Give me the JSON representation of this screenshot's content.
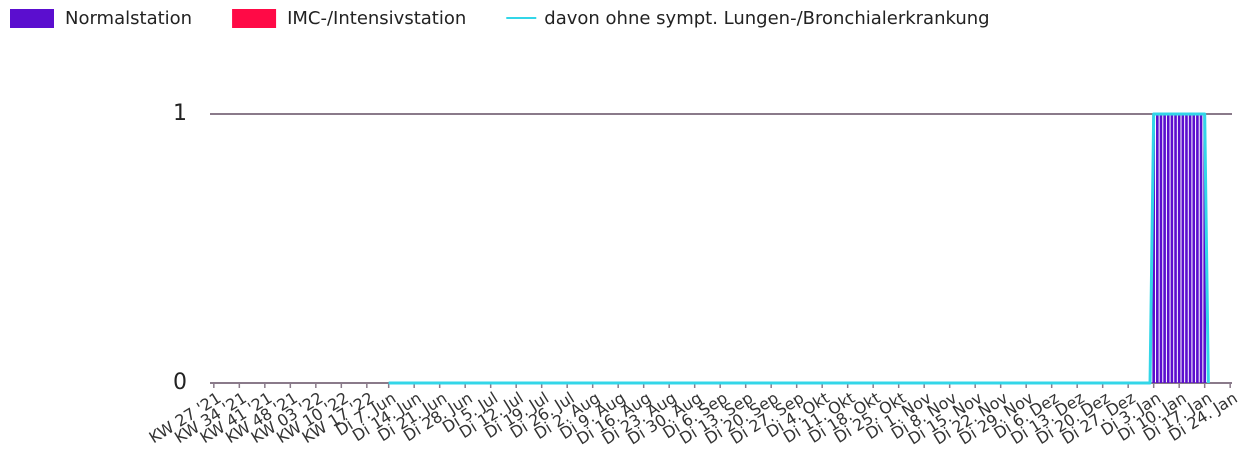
{
  "chart_data": {
    "type": "bar",
    "series": [
      {
        "name": "Normalstation",
        "color": "#5b0ecf",
        "kind": "bar",
        "values": [
          null,
          null,
          null,
          null,
          null,
          null,
          null,
          null,
          null,
          null,
          null,
          null,
          null,
          null,
          null,
          null,
          null,
          null,
          null,
          null,
          null,
          null,
          null,
          null,
          null,
          null,
          null,
          null,
          null,
          null,
          null,
          null,
          null,
          null,
          null,
          null,
          null,
          null,
          null,
          null,
          null,
          null,
          null,
          null,
          null,
          null,
          null,
          null,
          0,
          0,
          0,
          0,
          0,
          0,
          0,
          0,
          0,
          0,
          0,
          0,
          0,
          0,
          0,
          0,
          0,
          0,
          0,
          0,
          0,
          0,
          0,
          0,
          0,
          0,
          0,
          0,
          0,
          0,
          0,
          0,
          0,
          0,
          0,
          0,
          0,
          0,
          0,
          0,
          0,
          0,
          0,
          0,
          0,
          0,
          0,
          0,
          0,
          0,
          0,
          0,
          0,
          0,
          0,
          0,
          0,
          0,
          0,
          0,
          0,
          0,
          0,
          0,
          0,
          0,
          0,
          0,
          0,
          0,
          0,
          0,
          0,
          0,
          0,
          0,
          0,
          0,
          0,
          0,
          0,
          0,
          0,
          0,
          0,
          0,
          0,
          0,
          0,
          0,
          0,
          0,
          0,
          0,
          0,
          0,
          0,
          0,
          0,
          0,
          0,
          0,
          0,
          0,
          0,
          0,
          0,
          0,
          0,
          0,
          0,
          0,
          0,
          0,
          0,
          0,
          0,
          0,
          0,
          0,
          0,
          0,
          0,
          0,
          0,
          0,
          0,
          0,
          0,
          0,
          0,
          0,
          0,
          0,
          0,
          0,
          0,
          0,
          0,
          0,
          0,
          0,
          0,
          0,
          0,
          0,
          0,
          0,
          0,
          0,
          0,
          0,
          0,
          0,
          0,
          0,
          0,
          0,
          0,
          0,
          0,
          0,
          0,
          0,
          0,
          0,
          0,
          0,
          0,
          0,
          0,
          0,
          0,
          0,
          0,
          0,
          0,
          0,
          0,
          0,
          0,
          0,
          0,
          0,
          0,
          0,
          0,
          0,
          0,
          0,
          0,
          0,
          0,
          0,
          0,
          0,
          0,
          0,
          0,
          0,
          0,
          0,
          0,
          0,
          0,
          0,
          0,
          0,
          0,
          0,
          1,
          1,
          1,
          1,
          1,
          1,
          1,
          1,
          1,
          1,
          1,
          1,
          1,
          1,
          1,
          0,
          null,
          null,
          null,
          null,
          null,
          null
        ]
      },
      {
        "name": "IMC-/Intensivstation",
        "color": "#ff0a46",
        "kind": "bar",
        "values": [
          null,
          null,
          null,
          null,
          null,
          null,
          null,
          null,
          null,
          null,
          null,
          null,
          null,
          null,
          null,
          null,
          null,
          null,
          null,
          null,
          null,
          null,
          null,
          null,
          null,
          null,
          null,
          null,
          null,
          null,
          null,
          null,
          null,
          null,
          null,
          null,
          null,
          null,
          null,
          null,
          null,
          null,
          null,
          null,
          null,
          null,
          null,
          null,
          0,
          0,
          0,
          0,
          0,
          0,
          0,
          0,
          0,
          0,
          0,
          0,
          0,
          0,
          0,
          0,
          0,
          0,
          0,
          0,
          0,
          0,
          0,
          0,
          0,
          0,
          0,
          0,
          0,
          0,
          0,
          0,
          0,
          0,
          0,
          0,
          0,
          0,
          0,
          0,
          0,
          0,
          0,
          0,
          0,
          0,
          0,
          0,
          0,
          0,
          0,
          0,
          0,
          0,
          0,
          0,
          0,
          0,
          0,
          0,
          0,
          0,
          0,
          0,
          0,
          0,
          0,
          0,
          0,
          0,
          0,
          0,
          0,
          0,
          0,
          0,
          0,
          0,
          0,
          0,
          0,
          0,
          0,
          0,
          0,
          0,
          0,
          0,
          0,
          0,
          0,
          0,
          0,
          0,
          0,
          0,
          0,
          0,
          0,
          0,
          0,
          0,
          0,
          0,
          0,
          0,
          0,
          0,
          0,
          0,
          0,
          0,
          0,
          0,
          0,
          0,
          0,
          0,
          0,
          0,
          0,
          0,
          0,
          0,
          0,
          0,
          0,
          0,
          0,
          0,
          0,
          0,
          0,
          0,
          0,
          0,
          0,
          0,
          0,
          0,
          0,
          0,
          0,
          0,
          0,
          0,
          0,
          0,
          0,
          0,
          0,
          0,
          0,
          0,
          0,
          0,
          0,
          0,
          0,
          0,
          0,
          0,
          0,
          0,
          0,
          0,
          0,
          0,
          0,
          0,
          0,
          0,
          0,
          0,
          0,
          0,
          0,
          0,
          0,
          0,
          0,
          0,
          0,
          0,
          0,
          0,
          0,
          0,
          0,
          0,
          0,
          0,
          0,
          0,
          0,
          0,
          0,
          0,
          0,
          0,
          0,
          0,
          0,
          0,
          0,
          0,
          0,
          0,
          0,
          0,
          0,
          0,
          0,
          0,
          0,
          0,
          0,
          0,
          0,
          0,
          0,
          0,
          0,
          0,
          0,
          0,
          null,
          null,
          null,
          null,
          null,
          null
        ]
      },
      {
        "name": "davon ohne sympt. Lungen-/Bronchialerkrankung",
        "color": "#33d6e8",
        "kind": "line",
        "values": [
          null,
          null,
          null,
          null,
          null,
          null,
          null,
          null,
          null,
          null,
          null,
          null,
          null,
          null,
          null,
          null,
          null,
          null,
          null,
          null,
          null,
          null,
          null,
          null,
          null,
          null,
          null,
          null,
          null,
          null,
          null,
          null,
          null,
          null,
          null,
          null,
          null,
          null,
          null,
          null,
          null,
          null,
          null,
          null,
          null,
          null,
          null,
          null,
          0,
          0,
          0,
          0,
          0,
          0,
          0,
          0,
          0,
          0,
          0,
          0,
          0,
          0,
          0,
          0,
          0,
          0,
          0,
          0,
          0,
          0,
          0,
          0,
          0,
          0,
          0,
          0,
          0,
          0,
          0,
          0,
          0,
          0,
          0,
          0,
          0,
          0,
          0,
          0,
          0,
          0,
          0,
          0,
          0,
          0,
          0,
          0,
          0,
          0,
          0,
          0,
          0,
          0,
          0,
          0,
          0,
          0,
          0,
          0,
          0,
          0,
          0,
          0,
          0,
          0,
          0,
          0,
          0,
          0,
          0,
          0,
          0,
          0,
          0,
          0,
          0,
          0,
          0,
          0,
          0,
          0,
          0,
          0,
          0,
          0,
          0,
          0,
          0,
          0,
          0,
          0,
          0,
          0,
          0,
          0,
          0,
          0,
          0,
          0,
          0,
          0,
          0,
          0,
          0,
          0,
          0,
          0,
          0,
          0,
          0,
          0,
          0,
          0,
          0,
          0,
          0,
          0,
          0,
          0,
          0,
          0,
          0,
          0,
          0,
          0,
          0,
          0,
          0,
          0,
          0,
          0,
          0,
          0,
          0,
          0,
          0,
          0,
          0,
          0,
          0,
          0,
          0,
          0,
          0,
          0,
          0,
          0,
          0,
          0,
          0,
          0,
          0,
          0,
          0,
          0,
          0,
          0,
          0,
          0,
          0,
          0,
          0,
          0,
          0,
          0,
          0,
          0,
          0,
          0,
          0,
          0,
          0,
          0,
          0,
          0,
          0,
          0,
          0,
          0,
          0,
          0,
          0,
          0,
          0,
          0,
          0,
          0,
          0,
          0,
          0,
          0,
          0,
          0,
          0,
          0,
          0,
          0,
          0,
          0,
          0,
          0,
          0,
          0,
          0,
          0,
          0,
          0,
          0,
          0,
          1,
          1,
          1,
          1,
          1,
          1,
          1,
          1,
          1,
          1,
          1,
          1,
          1,
          1,
          1,
          0,
          null,
          null,
          null,
          null,
          null,
          null
        ]
      }
    ],
    "categories": [
      "KW 27 '21",
      null,
      null,
      null,
      null,
      null,
      null,
      "KW 34 '21",
      null,
      null,
      null,
      null,
      null,
      null,
      "KW 41 '21",
      null,
      null,
      null,
      null,
      null,
      null,
      "KW 48 '21",
      null,
      null,
      null,
      null,
      null,
      null,
      "KW 03 '22",
      null,
      null,
      null,
      null,
      null,
      null,
      "KW 10 '22",
      null,
      null,
      null,
      null,
      null,
      null,
      "KW 17 '22",
      null,
      null,
      null,
      null,
      null,
      "Di 7. Jun",
      null,
      null,
      null,
      null,
      null,
      null,
      "Di 14. Jun",
      null,
      null,
      null,
      null,
      null,
      null,
      "Di 21. Jun",
      null,
      null,
      null,
      null,
      null,
      null,
      "Di 28. Jun",
      null,
      null,
      null,
      null,
      null,
      null,
      "Di 5. Jul",
      null,
      null,
      null,
      null,
      null,
      null,
      "Di 12. Jul",
      null,
      null,
      null,
      null,
      null,
      null,
      "Di 19. Jul",
      null,
      null,
      null,
      null,
      null,
      null,
      "Di 26. Jul",
      null,
      null,
      null,
      null,
      null,
      null,
      "Di 2. Aug",
      null,
      null,
      null,
      null,
      null,
      null,
      "Di 9. Aug",
      null,
      null,
      null,
      null,
      null,
      null,
      "Di 16. Aug",
      null,
      null,
      null,
      null,
      null,
      null,
      "Di 23. Aug",
      null,
      null,
      null,
      null,
      null,
      null,
      "Di 30. Aug",
      null,
      null,
      null,
      null,
      null,
      null,
      "Di 6. Sep",
      null,
      null,
      null,
      null,
      null,
      null,
      "Di 13. Sep",
      null,
      null,
      null,
      null,
      null,
      null,
      "Di 20. Sep",
      null,
      null,
      null,
      null,
      null,
      null,
      "Di 27. Sep",
      null,
      null,
      null,
      null,
      null,
      null,
      "Di 4. Okt",
      null,
      null,
      null,
      null,
      null,
      null,
      "Di 11. Okt",
      null,
      null,
      null,
      null,
      null,
      null,
      "Di 18. Okt",
      null,
      null,
      null,
      null,
      null,
      null,
      "Di 25. Okt",
      null,
      null,
      null,
      null,
      null,
      null,
      "Di 1. Nov",
      null,
      null,
      null,
      null,
      null,
      null,
      "Di 8. Nov",
      null,
      null,
      null,
      null,
      null,
      null,
      "Di 15. Nov",
      null,
      null,
      null,
      null,
      null,
      null,
      "Di 22. Nov",
      null,
      null,
      null,
      null,
      null,
      null,
      "Di 29. Nov",
      null,
      null,
      null,
      null,
      null,
      null,
      "Di 6. Dez",
      null,
      null,
      null,
      null,
      null,
      null,
      "Di 13. Dez",
      null,
      null,
      null,
      null,
      null,
      null,
      "Di 20. Dez",
      null,
      null,
      null,
      null,
      null,
      null,
      "Di 27. Dez",
      null,
      null,
      null,
      null,
      null,
      null,
      "Di 3. Jan",
      null,
      null,
      null,
      null,
      null,
      null,
      "Di 10. Jan",
      null,
      null,
      null,
      null,
      null,
      null,
      "Di 17. Jan",
      null,
      null,
      null,
      null,
      null,
      null,
      "Di 24. Jan"
    ],
    "ylim": [
      0,
      1
    ],
    "yticks": [
      0,
      1
    ],
    "grid": true,
    "legend": "top-left"
  }
}
